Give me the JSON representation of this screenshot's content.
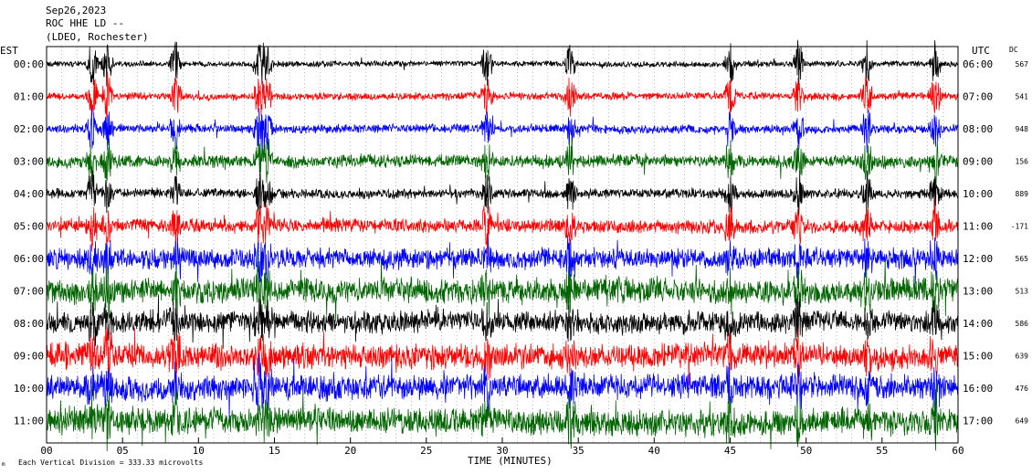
{
  "header": {
    "line1": "Sep26,2023",
    "line2": "ROC HHE LD --",
    "line3": "(LDEO, Rochester)"
  },
  "left_axis_label": "EST",
  "right_axis_label": "UTC",
  "dc_label": "DC",
  "footer": {
    "scale_note": "Each Vertical Division =  333.33 microvolts",
    "corner_mark": "m"
  },
  "chart_data": {
    "type": "line",
    "title": "Sep26,2023 ROC HHE LD -- (LDEO, Rochester)",
    "xlabel": "TIME (MINUTES)",
    "xlim": [
      0,
      60
    ],
    "x_ticks": [
      "00",
      "05",
      "10",
      "15",
      "20",
      "25",
      "30",
      "35",
      "40",
      "45",
      "50",
      "55",
      "60"
    ],
    "grid": true,
    "rows": [
      {
        "est": "00:00",
        "utc": "06:00",
        "dc": "567",
        "color": "#000000"
      },
      {
        "est": "01:00",
        "utc": "07:00",
        "dc": "541",
        "color": "#ff0000"
      },
      {
        "est": "02:00",
        "utc": "08:00",
        "dc": "948",
        "color": "#0000ff"
      },
      {
        "est": "03:00",
        "utc": "09:00",
        "dc": "156",
        "color": "#006400"
      },
      {
        "est": "04:00",
        "utc": "10:00",
        "dc": "889",
        "color": "#000000"
      },
      {
        "est": "05:00",
        "utc": "11:00",
        "dc": "-171",
        "color": "#ff0000"
      },
      {
        "est": "06:00",
        "utc": "12:00",
        "dc": "565",
        "color": "#0000ff"
      },
      {
        "est": "07:00",
        "utc": "13:00",
        "dc": "513",
        "color": "#006400"
      },
      {
        "est": "08:00",
        "utc": "14:00",
        "dc": "586",
        "color": "#000000"
      },
      {
        "est": "09:00",
        "utc": "15:00",
        "dc": "639",
        "color": "#ff0000"
      },
      {
        "est": "10:00",
        "utc": "16:00",
        "dc": "476",
        "color": "#0000ff"
      },
      {
        "est": "11:00",
        "utc": "17:00",
        "dc": "649",
        "color": "#006400"
      }
    ],
    "amplitude_level": [
      0.22,
      0.28,
      0.32,
      0.45,
      0.35,
      0.5,
      0.75,
      0.9,
      0.8,
      0.9,
      0.9,
      0.95
    ],
    "events_minutes": [
      3,
      4,
      8.5,
      14,
      14.5,
      29,
      34.5,
      45,
      49.5,
      54,
      58.5
    ]
  }
}
